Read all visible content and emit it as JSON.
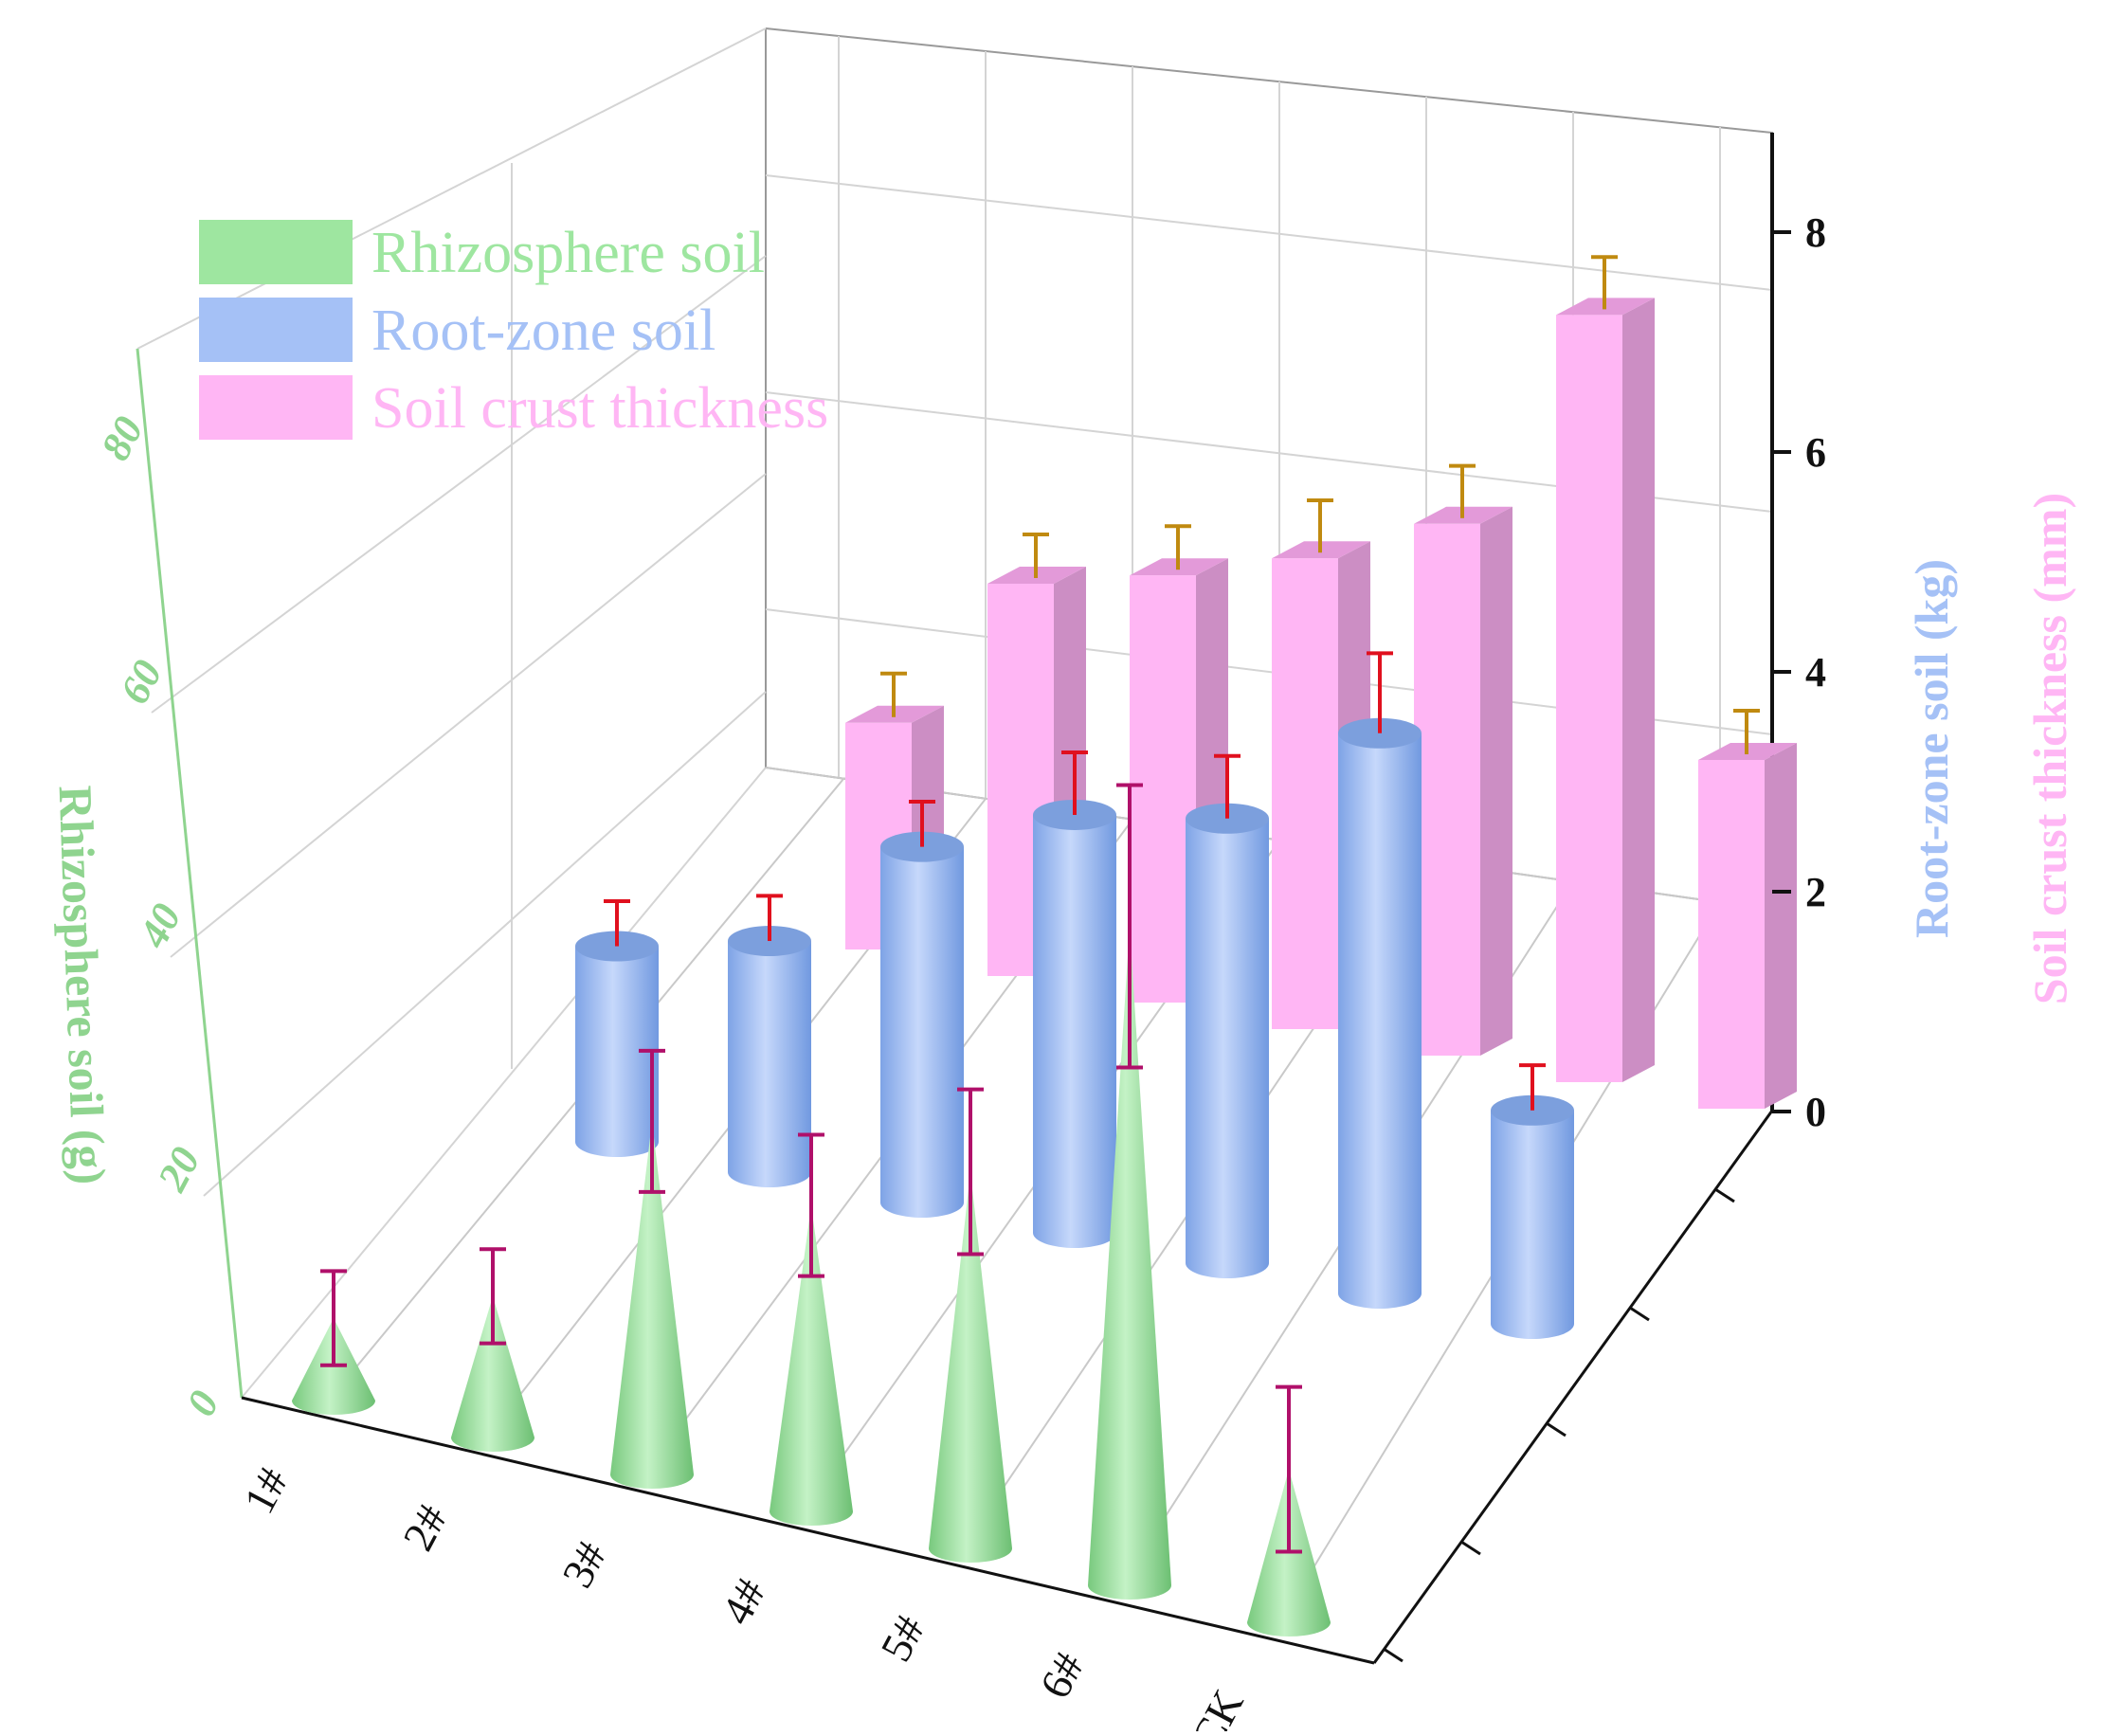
{
  "chart_data": {
    "type": "bar",
    "categories": [
      "1#",
      "2#",
      "3#",
      "4#",
      "5#",
      "6#",
      "CK"
    ],
    "series": [
      {
        "name": "Rhizosphere soil",
        "shape": "cone",
        "color": "#9ee6a0",
        "axis": "left",
        "values": [
          7,
          12,
          30,
          26,
          32,
          56,
          13
        ],
        "errors": [
          4,
          4,
          6,
          6,
          7,
          12,
          7
        ]
      },
      {
        "name": "Root-zone soil",
        "shape": "cylinder",
        "color": "#a5c1f6",
        "axis": "right",
        "values": [
          2.2,
          2.6,
          4.0,
          4.7,
          5.0,
          6.3,
          2.4
        ],
        "errors": [
          0.3,
          0.3,
          0.3,
          0.5,
          0.5,
          0.7,
          0.3
        ]
      },
      {
        "name": "Soil crust thickness",
        "shape": "box",
        "color": "#ffb6f4",
        "axis": "right",
        "values": [
          2.6,
          4.5,
          4.9,
          5.4,
          6.1,
          8.8,
          4.0
        ],
        "errors": [
          0.5,
          0.5,
          0.5,
          0.6,
          0.6,
          0.6,
          0.5
        ]
      }
    ],
    "left_axis": {
      "label": "Rhizosphere soil (g)",
      "ylim": [
        0,
        90
      ],
      "ticks": [
        "0",
        "20",
        "40",
        "60",
        "80"
      ],
      "color": "#8fd48f"
    },
    "right_axis": {
      "label_primary": "Root-zone soil (kg)",
      "label_secondary": "Soil crust thickness (mm)",
      "ylim": [
        0,
        9
      ],
      "ticks": [
        "0",
        "2",
        "4",
        "6",
        "8"
      ],
      "color_primary": "#a5c1f6",
      "color_secondary": "#ffb6f4"
    },
    "legend": {
      "position": "top-left",
      "entries": [
        "Rhizosphere soil",
        "Root-zone soil",
        "Soil crust thickness"
      ]
    },
    "grid": true,
    "error_bar_colors": {
      "Rhizosphere soil": "#b0106a",
      "Root-zone soil": "#e0101e",
      "Soil crust thickness": "#c08a10"
    }
  }
}
